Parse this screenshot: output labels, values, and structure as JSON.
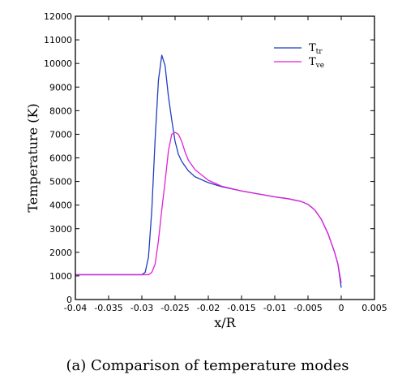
{
  "caption": "(a) Comparison of temperature modes",
  "chart_data": {
    "type": "line",
    "xlabel": "x/R",
    "ylabel": "Temperature (K)",
    "xlim": [
      -0.04,
      0.005
    ],
    "ylim": [
      0,
      12000
    ],
    "xticks": [
      "-0.04",
      "-0.035",
      "-0.03",
      "-0.025",
      "-0.02",
      "-0.015",
      "-0.01",
      "-0.005",
      "0",
      "0.005"
    ],
    "yticks": [
      "0",
      "1000",
      "2000",
      "3000",
      "4000",
      "5000",
      "6000",
      "7000",
      "8000",
      "9000",
      "10000",
      "11000",
      "12000"
    ],
    "grid": false,
    "legend_position": "top-right",
    "series": [
      {
        "name": "T",
        "subscript": "tr",
        "color": "#1f3fbf",
        "x": [
          -0.04,
          -0.03,
          -0.0295,
          -0.029,
          -0.0285,
          -0.028,
          -0.0275,
          -0.027,
          -0.0265,
          -0.026,
          -0.0255,
          -0.025,
          -0.0245,
          -0.024,
          -0.023,
          -0.022,
          -0.02,
          -0.018,
          -0.015,
          -0.012,
          -0.01,
          -0.008,
          -0.006,
          -0.005,
          -0.004,
          -0.003,
          -0.002,
          -0.001,
          -0.0005,
          0.0
        ],
        "y": [
          1050,
          1050,
          1150,
          1800,
          3800,
          6800,
          9300,
          10350,
          9900,
          8600,
          7600,
          6700,
          6150,
          5850,
          5450,
          5200,
          4950,
          4780,
          4600,
          4450,
          4350,
          4270,
          4150,
          4030,
          3800,
          3400,
          2800,
          2000,
          1500,
          500
        ]
      },
      {
        "name": "T",
        "subscript": "ve",
        "color": "#e020d8",
        "x": [
          -0.04,
          -0.029,
          -0.0285,
          -0.028,
          -0.0275,
          -0.027,
          -0.0265,
          -0.026,
          -0.0255,
          -0.025,
          -0.0245,
          -0.024,
          -0.0235,
          -0.023,
          -0.022,
          -0.02,
          -0.018,
          -0.015,
          -0.012,
          -0.01,
          -0.008,
          -0.006,
          -0.005,
          -0.004,
          -0.003,
          -0.002,
          -0.001,
          -0.0005,
          0.0
        ],
        "y": [
          1050,
          1050,
          1150,
          1500,
          2500,
          3800,
          5000,
          6300,
          7000,
          7080,
          7000,
          6700,
          6250,
          5900,
          5500,
          5050,
          4800,
          4600,
          4450,
          4350,
          4270,
          4150,
          4030,
          3800,
          3400,
          2800,
          2000,
          1500,
          700
        ]
      }
    ]
  }
}
